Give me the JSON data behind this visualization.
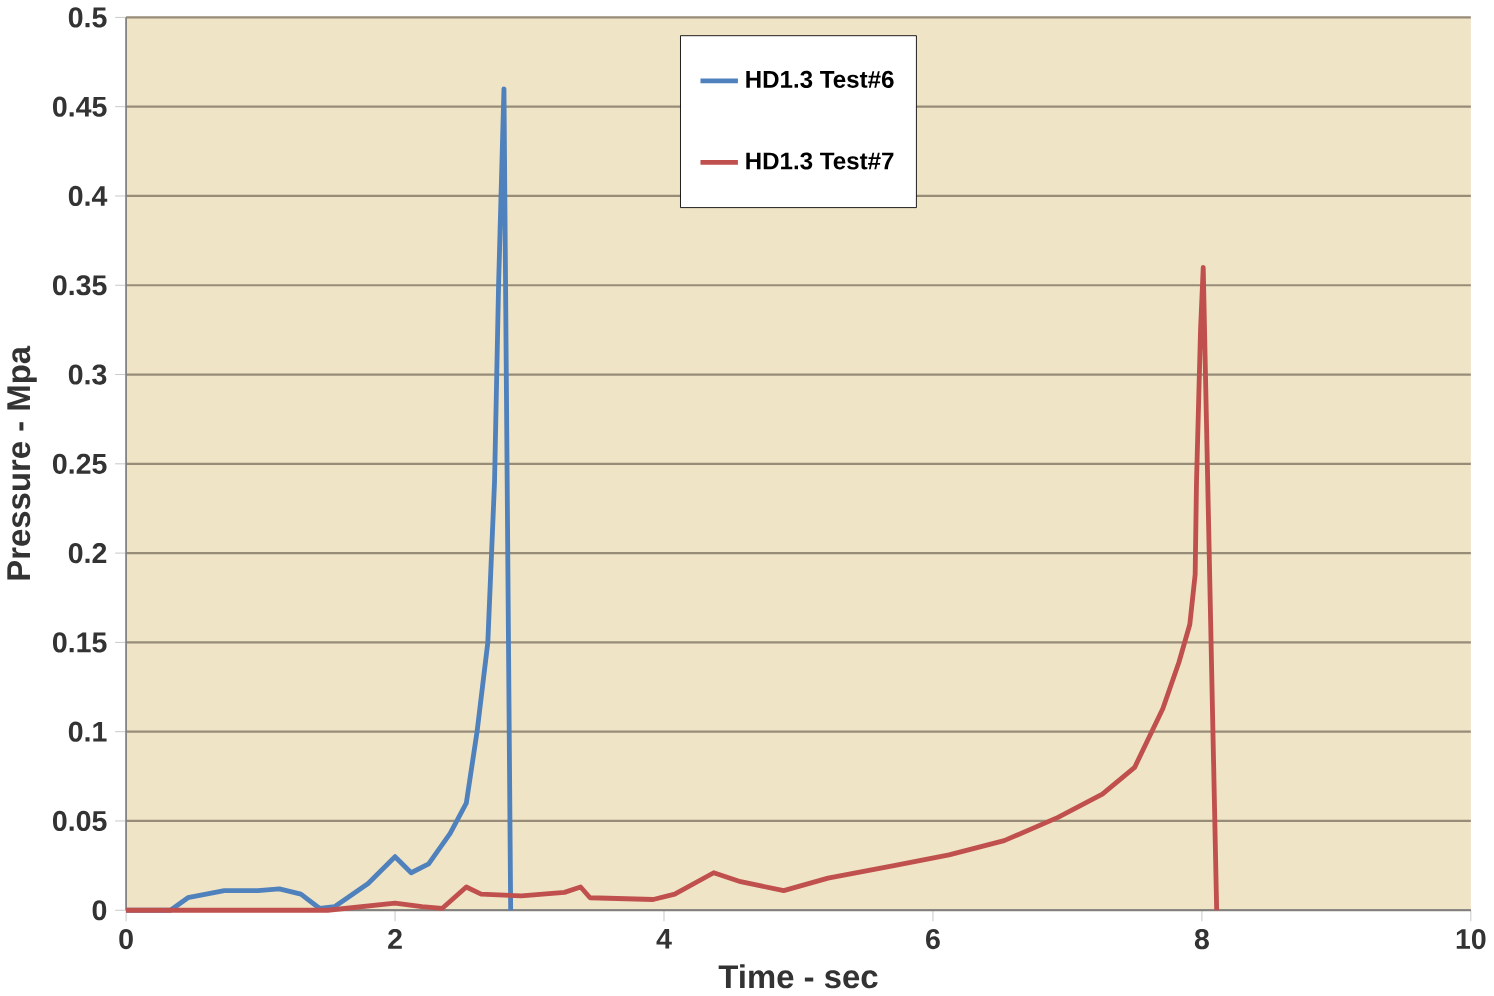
{
  "chart_data": {
    "type": "line",
    "xlabel": "Time  - sec",
    "ylabel": "Pressure - Mpa",
    "xlim": [
      0,
      10
    ],
    "ylim": [
      0,
      0.5
    ],
    "xticks": [
      0,
      2,
      4,
      6,
      8,
      10
    ],
    "yticks": [
      0,
      0.05,
      0.1,
      0.15,
      0.2,
      0.25,
      0.3,
      0.35,
      0.4,
      0.45,
      0.5
    ],
    "grid": "y",
    "legend": "top",
    "marker": "none",
    "line_style": "solid",
    "series": [
      {
        "name": "HD1.3 Test#6",
        "color": "#4f81bd",
        "x": [
          0,
          0.33,
          0.46,
          0.73,
          0.98,
          1.14,
          1.3,
          1.44,
          1.55,
          1.8,
          2.0,
          2.12,
          2.25,
          2.41,
          2.53,
          2.61,
          2.69,
          2.74,
          2.77,
          2.81,
          2.86
        ],
        "values": [
          0,
          0,
          0.007,
          0.011,
          0.011,
          0.012,
          0.009,
          0.001,
          0.002,
          0.015,
          0.03,
          0.021,
          0.026,
          0.043,
          0.06,
          0.1,
          0.15,
          0.24,
          0.35,
          0.46,
          0
        ]
      },
      {
        "name": "HD1.3 Test#7",
        "color": "#c0504d",
        "x": [
          0,
          1.5,
          2.0,
          2.2,
          2.35,
          2.53,
          2.64,
          2.94,
          3.26,
          3.38,
          3.45,
          3.92,
          4.08,
          4.37,
          4.57,
          4.89,
          5.22,
          5.71,
          6.12,
          6.53,
          6.93,
          7.26,
          7.5,
          7.71,
          7.83,
          7.91,
          7.95,
          7.96,
          7.99,
          8.01,
          8.11
        ],
        "values": [
          0,
          0,
          0.004,
          0.002,
          0.001,
          0.013,
          0.009,
          0.008,
          0.01,
          0.013,
          0.007,
          0.006,
          0.009,
          0.021,
          0.016,
          0.011,
          0.018,
          0.025,
          0.031,
          0.039,
          0.052,
          0.065,
          0.08,
          0.113,
          0.139,
          0.16,
          0.188,
          0.24,
          0.325,
          0.36,
          0
        ]
      }
    ]
  }
}
